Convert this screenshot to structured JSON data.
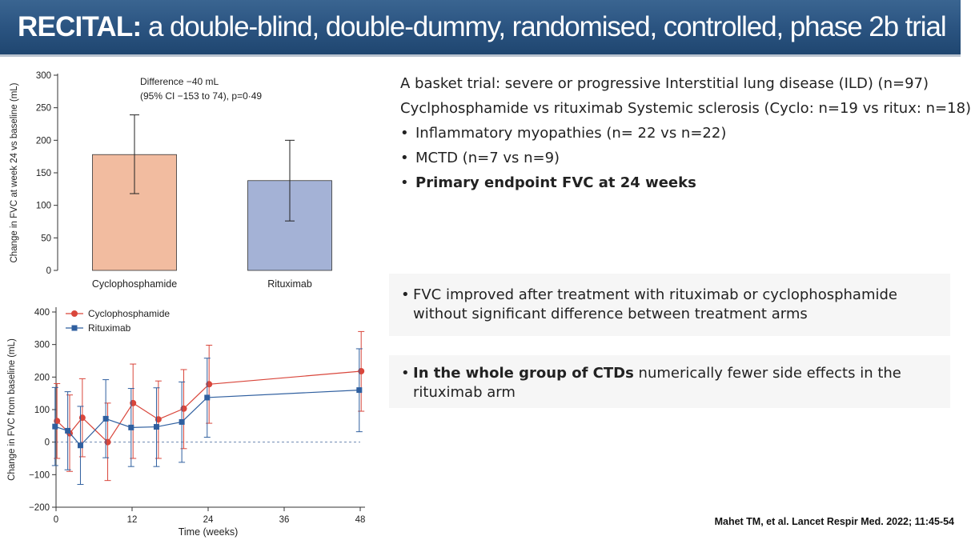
{
  "title": {
    "bold": "RECITAL:",
    "rest": " a double-blind, double-dummy, randomised, controlled, phase 2b trial"
  },
  "intro": {
    "lines": [
      "A basket trial: severe or progressive Interstitial lung disease (ILD) (n=97)",
      "Cyclphosphamide vs rituximab Systemic sclerosis (Cyclo: n=19 vs ritux: n=18)"
    ],
    "bullets": [
      {
        "text": "Inflammatory myopathies (n= 22 vs n=22)",
        "bold": false
      },
      {
        "text": "MCTD (n=7 vs n=9)",
        "bold": false
      },
      {
        "text": "Primary endpoint FVC at 24 weeks",
        "bold": true
      }
    ],
    "bullet_char": "•"
  },
  "findings": [
    {
      "bold": "",
      "text": "FVC improved after treatment with rituximab or cyclophosphamide without significant difference between treatment arms"
    },
    {
      "bold": "In the whole group of CTDs",
      "text": " numerically fewer side effects in the rituximab arm"
    }
  ],
  "citation": "Mahet TM, et al. Lancet Respir Med. 2022; 11:45-54",
  "chart_data": [
    {
      "type": "bar",
      "categories": [
        "Cyclophosphamide",
        "Rituximab"
      ],
      "values": [
        178,
        138
      ],
      "error_low": [
        118,
        76
      ],
      "error_high": [
        239,
        200
      ],
      "colors": [
        "#f2bca0",
        "#a4b2d6"
      ],
      "ylabel": "Change in FVC at week 24 vs baseline (mL)",
      "ylim": [
        0,
        300
      ],
      "yticks": [
        0,
        50,
        100,
        150,
        200,
        250,
        300
      ],
      "annotation": [
        "Difference −40 mL",
        "(95% CI −153 to 74), p=0·49"
      ]
    },
    {
      "type": "line",
      "xlabel": "Time (weeks)",
      "ylabel": "Change in FVC from baseline (mL)",
      "xlim": [
        0,
        48
      ],
      "ylim": [
        -200,
        400
      ],
      "xticks": [
        0,
        12,
        24,
        36,
        48
      ],
      "yticks": [
        -200,
        -100,
        0,
        100,
        200,
        300,
        400
      ],
      "reference_line": 0,
      "legend_position": "top-left",
      "series": [
        {
          "name": "Cyclophosphamide",
          "color": "#d9463b",
          "marker": "circle",
          "x": [
            0,
            2,
            4,
            8,
            12,
            16,
            20,
            24,
            48
          ],
          "y": [
            65,
            27,
            75,
            0,
            120,
            70,
            103,
            178,
            218
          ],
          "err_low": [
            -50,
            -90,
            -45,
            -118,
            -50,
            -50,
            -20,
            58,
            95
          ],
          "err_high": [
            180,
            145,
            195,
            120,
            240,
            188,
            223,
            298,
            340
          ]
        },
        {
          "name": "Rituximab",
          "color": "#2f5f9f",
          "marker": "square",
          "x": [
            0,
            2,
            4,
            8,
            12,
            16,
            20,
            24,
            48
          ],
          "y": [
            48,
            35,
            -10,
            72,
            45,
            47,
            62,
            137,
            160
          ],
          "err_low": [
            -72,
            -85,
            -130,
            -48,
            -75,
            -75,
            -62,
            15,
            32
          ],
          "err_high": [
            168,
            155,
            110,
            192,
            165,
            167,
            185,
            258,
            287
          ]
        }
      ]
    }
  ]
}
